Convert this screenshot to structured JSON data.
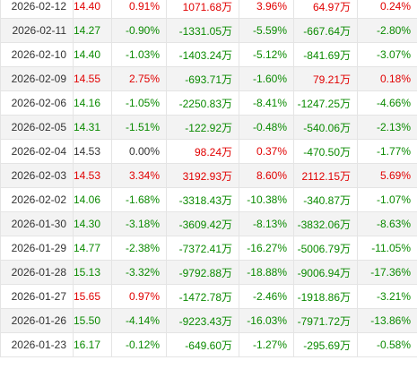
{
  "colors": {
    "up": "#e10000",
    "down": "#0a8a00",
    "flat": "#333333",
    "stripe": "#f3f3f3",
    "border": "#e4e4e4"
  },
  "rows": [
    {
      "date": "2026-02-12",
      "close": "14.40",
      "change_pct": "0.91%",
      "main_net": "1071.68万",
      "main_pct": "3.96%",
      "large_net": "64.97万",
      "large_pct": "0.24%",
      "trend": "up"
    },
    {
      "date": "2026-02-11",
      "close": "14.27",
      "change_pct": "-0.90%",
      "main_net": "-1331.05万",
      "main_pct": "-5.59%",
      "large_net": "-667.64万",
      "large_pct": "-2.80%",
      "trend": "down"
    },
    {
      "date": "2026-02-10",
      "close": "14.40",
      "change_pct": "-1.03%",
      "main_net": "-1403.24万",
      "main_pct": "-5.12%",
      "large_net": "-841.69万",
      "large_pct": "-3.07%",
      "trend": "down"
    },
    {
      "date": "2026-02-09",
      "close": "14.55",
      "change_pct": "2.75%",
      "main_net": "-693.71万",
      "main_pct": "-1.60%",
      "large_net": "79.21万",
      "large_pct": "0.18%",
      "trend": "up"
    },
    {
      "date": "2026-02-06",
      "close": "14.16",
      "change_pct": "-1.05%",
      "main_net": "-2250.83万",
      "main_pct": "-8.41%",
      "large_net": "-1247.25万",
      "large_pct": "-4.66%",
      "trend": "down"
    },
    {
      "date": "2026-02-05",
      "close": "14.31",
      "change_pct": "-1.51%",
      "main_net": "-122.92万",
      "main_pct": "-0.48%",
      "large_net": "-540.06万",
      "large_pct": "-2.13%",
      "trend": "down"
    },
    {
      "date": "2026-02-04",
      "close": "14.53",
      "change_pct": "0.00%",
      "main_net": "98.24万",
      "main_pct": "0.37%",
      "large_net": "-470.50万",
      "large_pct": "-1.77%",
      "trend": "flat"
    },
    {
      "date": "2026-02-03",
      "close": "14.53",
      "change_pct": "3.34%",
      "main_net": "3192.93万",
      "main_pct": "8.60%",
      "large_net": "2112.15万",
      "large_pct": "5.69%",
      "trend": "up"
    },
    {
      "date": "2026-02-02",
      "close": "14.06",
      "change_pct": "-1.68%",
      "main_net": "-3318.43万",
      "main_pct": "-10.38%",
      "large_net": "-340.87万",
      "large_pct": "-1.07%",
      "trend": "down"
    },
    {
      "date": "2026-01-30",
      "close": "14.30",
      "change_pct": "-3.18%",
      "main_net": "-3609.42万",
      "main_pct": "-8.13%",
      "large_net": "-3832.06万",
      "large_pct": "-8.63%",
      "trend": "down"
    },
    {
      "date": "2026-01-29",
      "close": "14.77",
      "change_pct": "-2.38%",
      "main_net": "-7372.41万",
      "main_pct": "-16.27%",
      "large_net": "-5006.79万",
      "large_pct": "-11.05%",
      "trend": "down"
    },
    {
      "date": "2026-01-28",
      "close": "15.13",
      "change_pct": "-3.32%",
      "main_net": "-9792.88万",
      "main_pct": "-18.88%",
      "large_net": "-9006.94万",
      "large_pct": "-17.36%",
      "trend": "down"
    },
    {
      "date": "2026-01-27",
      "close": "15.65",
      "change_pct": "0.97%",
      "main_net": "-1472.78万",
      "main_pct": "-2.46%",
      "large_net": "-1918.86万",
      "large_pct": "-3.21%",
      "trend": "up"
    },
    {
      "date": "2026-01-26",
      "close": "15.50",
      "change_pct": "-4.14%",
      "main_net": "-9223.43万",
      "main_pct": "-16.03%",
      "large_net": "-7971.72万",
      "large_pct": "-13.86%",
      "trend": "down"
    },
    {
      "date": "2026-01-23",
      "close": "16.17",
      "change_pct": "-0.12%",
      "main_net": "-649.60万",
      "main_pct": "-1.27%",
      "large_net": "-295.69万",
      "large_pct": "-0.58%",
      "trend": "down"
    }
  ]
}
